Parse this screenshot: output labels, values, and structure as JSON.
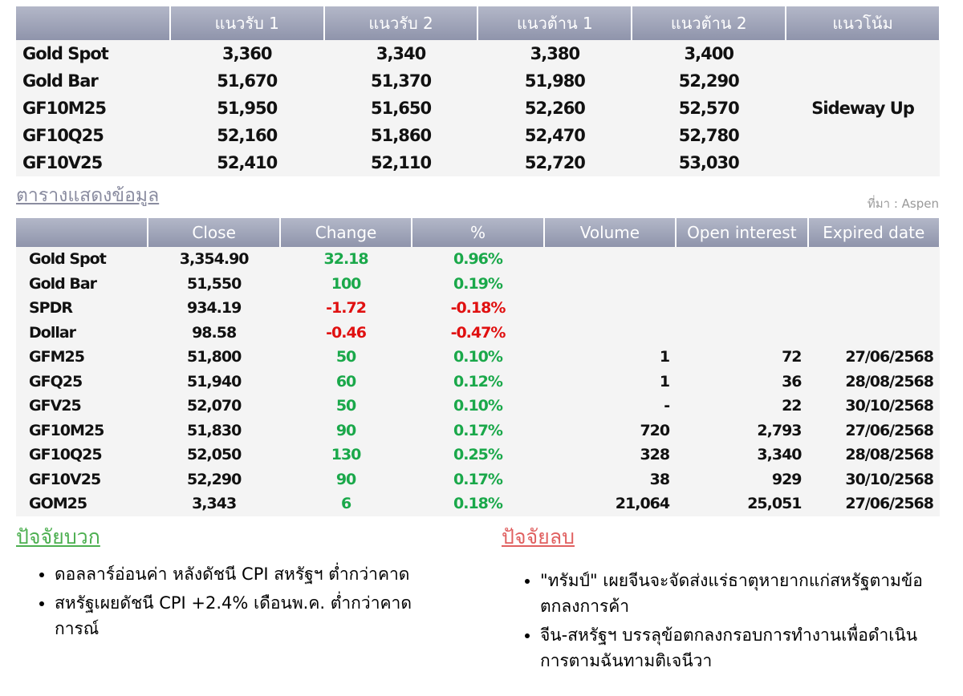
{
  "support_table": {
    "headers": [
      "แนวรับ 1",
      "แนวรับ 2",
      "แนวต้าน 1",
      "แนวต้าน 2",
      "แนวโน้ม"
    ],
    "rows": [
      [
        "Gold Spot",
        "3,360",
        "3,340",
        "3,380",
        "3,400"
      ],
      [
        "Gold Bar",
        "51,670",
        "51,370",
        "51,980",
        "52,290"
      ],
      [
        "GF10M25",
        "51,950",
        "51,650",
        "52,260",
        "52,570"
      ],
      [
        "GF10Q25",
        "52,160",
        "51,860",
        "52,470",
        "52,780"
      ],
      [
        "GF10V25",
        "52,410",
        "52,110",
        "52,720",
        "53,030"
      ]
    ],
    "trend": "Sideway Up"
  },
  "data_section": {
    "title": "ตารางแสดงข้อมูล",
    "source": "ที่มา : Aspen"
  },
  "data_table": {
    "headers": [
      "Close",
      "Change",
      "%",
      "Volume",
      "Open interest",
      "Expired date"
    ],
    "rows": [
      [
        "Gold Spot",
        "3,354.90",
        "32.18",
        "0.96%"
      ],
      [
        "Gold Bar",
        "51,550",
        "100",
        "0.19%"
      ],
      [
        "SPDR",
        "934.19",
        "-1.72",
        "-0.18%"
      ],
      [
        "Dollar",
        "98.58",
        "-0.46",
        "-0.47%"
      ],
      [
        "GFM25",
        "51,800",
        "50",
        "0.10%",
        "1",
        "72",
        "27/06/2568"
      ],
      [
        "GFQ25",
        "51,940",
        "60",
        "0.12%",
        "1",
        "36",
        "28/08/2568"
      ],
      [
        "GFV25",
        "52,070",
        "50",
        "0.10%",
        "-",
        "22",
        "30/10/2568"
      ],
      [
        "GF10M25",
        "51,830",
        "90",
        "0.17%",
        "720",
        "2,793",
        "27/06/2568"
      ],
      [
        "GF10Q25",
        "52,050",
        "130",
        "0.25%",
        "328",
        "3,340",
        "28/08/2568"
      ],
      [
        "GF10V25",
        "52,290",
        "90",
        "0.17%",
        "38",
        "929",
        "30/10/2568"
      ],
      [
        "GOM25",
        "3,343",
        "6",
        "0.18%",
        "21,064",
        "25,051",
        "27/06/2568"
      ]
    ]
  },
  "positive": {
    "title": "ปัจจัยบวก",
    "items": [
      "ดอลลาร์อ่อนค่า หลังดัชนี CPI สหรัฐฯ ต่ำกว่าคาด",
      "สหรัฐเผยดัชนี CPI +2.4% เดือนพ.ค. ต่ำกว่าคาดการณ์"
    ]
  },
  "negative": {
    "title": "ปัจจัยลบ",
    "items": [
      "\"ทรัมป์\" เผยจีนจะจัดส่งแร่ธาตุหายากแก่สหรัฐตามข้อตกลงการค้า",
      "จีน-สหรัฐฯ บรรลุข้อตกลงกรอบการทำงานเพื่อดำเนินการตามฉันทามติเจนีวา"
    ]
  }
}
